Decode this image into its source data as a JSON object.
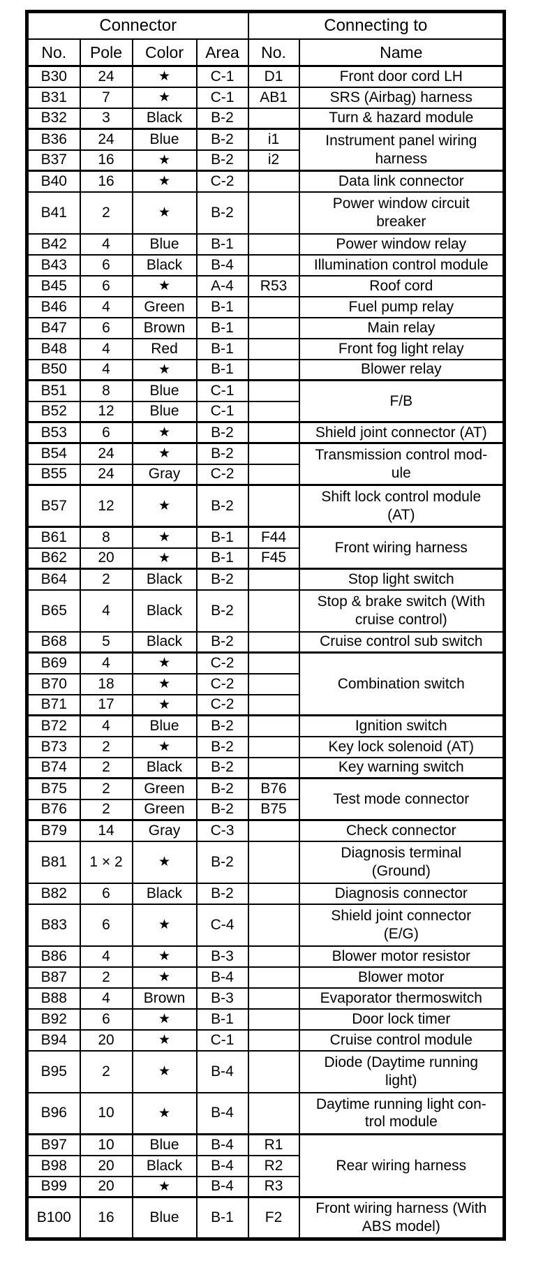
{
  "document": {
    "type": "connector-reference-table",
    "colors": {
      "ink": "#000000",
      "paper": "#ffffff"
    },
    "star_symbol": "★",
    "header_groups": {
      "connector": "Connector",
      "connecting_to": "Connecting to"
    },
    "columns": {
      "no": "No.",
      "pole": "Pole",
      "color": "Color",
      "area": "Area",
      "cno": "No.",
      "name": "Name"
    },
    "rows": [
      {
        "no": "B30",
        "pole": "24",
        "color": "★",
        "area": "C-1",
        "cno": "D1",
        "name": "Front door cord LH"
      },
      {
        "no": "B31",
        "pole": "7",
        "color": "★",
        "area": "C-1",
        "cno": "AB1",
        "name": "SRS (Airbag) harness"
      },
      {
        "no": "B32",
        "pole": "3",
        "color": "Black",
        "area": "B-2",
        "cno": "",
        "name": "Turn & hazard module"
      },
      {
        "no": "B36",
        "pole": "24",
        "color": "Blue",
        "area": "B-2",
        "cno": "i1",
        "name": "Instrument panel wiring\nharness",
        "name_rowspan": 2,
        "thick": true
      },
      {
        "no": "B37",
        "pole": "16",
        "color": "★",
        "area": "B-2",
        "cno": "i2"
      },
      {
        "no": "B40",
        "pole": "16",
        "color": "★",
        "area": "C-2",
        "cno": "",
        "name": "Data link connector",
        "thick": true
      },
      {
        "no": "B41",
        "pole": "2",
        "color": "★",
        "area": "B-2",
        "cno": "",
        "name": "Power window circuit\nbreaker",
        "h": 2
      },
      {
        "no": "B42",
        "pole": "4",
        "color": "Blue",
        "area": "B-1",
        "cno": "",
        "name": "Power window relay"
      },
      {
        "no": "B43",
        "pole": "6",
        "color": "Black",
        "area": "B-4",
        "cno": "",
        "name": "Illumination control module"
      },
      {
        "no": "B45",
        "pole": "6",
        "color": "★",
        "area": "A-4",
        "cno": "R53",
        "name": "Roof cord"
      },
      {
        "no": "B46",
        "pole": "4",
        "color": "Green",
        "area": "B-1",
        "cno": "",
        "name": "Fuel pump relay"
      },
      {
        "no": "B47",
        "pole": "6",
        "color": "Brown",
        "area": "B-1",
        "cno": "",
        "name": "Main relay"
      },
      {
        "no": "B48",
        "pole": "4",
        "color": "Red",
        "area": "B-1",
        "cno": "",
        "name": "Front fog light relay"
      },
      {
        "no": "B50",
        "pole": "4",
        "color": "★",
        "area": "B-1",
        "cno": "",
        "name": "Blower relay"
      },
      {
        "no": "B51",
        "pole": "8",
        "color": "Blue",
        "area": "C-1",
        "cno": "",
        "name": "F/B",
        "name_rowspan": 2,
        "thick": true
      },
      {
        "no": "B52",
        "pole": "12",
        "color": "Blue",
        "area": "C-1",
        "cno": ""
      },
      {
        "no": "B53",
        "pole": "6",
        "color": "★",
        "area": "B-2",
        "cno": "",
        "name": "Shield joint connector (AT)",
        "thick": true
      },
      {
        "no": "B54",
        "pole": "24",
        "color": "★",
        "area": "B-2",
        "cno": "",
        "name": "Transmission control mod-\nule",
        "name_rowspan": 2,
        "thick": true
      },
      {
        "no": "B55",
        "pole": "24",
        "color": "Gray",
        "area": "C-2",
        "cno": ""
      },
      {
        "no": "B57",
        "pole": "12",
        "color": "★",
        "area": "B-2",
        "cno": "",
        "name": "Shift lock control module\n(AT)",
        "h": 2,
        "thick": true
      },
      {
        "no": "B61",
        "pole": "8",
        "color": "★",
        "area": "B-1",
        "cno": "F44",
        "name": "Front wiring harness",
        "name_rowspan": 2,
        "thick": true
      },
      {
        "no": "B62",
        "pole": "20",
        "color": "★",
        "area": "B-1",
        "cno": "F45"
      },
      {
        "no": "B64",
        "pole": "2",
        "color": "Black",
        "area": "B-2",
        "cno": "",
        "name": "Stop light switch",
        "thick": true
      },
      {
        "no": "B65",
        "pole": "4",
        "color": "Black",
        "area": "B-2",
        "cno": "",
        "name": "Stop & brake switch (With\ncruise control)",
        "h": 2
      },
      {
        "no": "B68",
        "pole": "5",
        "color": "Black",
        "area": "B-2",
        "cno": "",
        "name": "Cruise control sub switch"
      },
      {
        "no": "B69",
        "pole": "4",
        "color": "★",
        "area": "C-2",
        "cno": "",
        "name": "Combination switch",
        "name_rowspan": 3,
        "thick": true
      },
      {
        "no": "B70",
        "pole": "18",
        "color": "★",
        "area": "C-2",
        "cno": ""
      },
      {
        "no": "B71",
        "pole": "17",
        "color": "★",
        "area": "C-2",
        "cno": ""
      },
      {
        "no": "B72",
        "pole": "4",
        "color": "Blue",
        "area": "B-2",
        "cno": "",
        "name": "Ignition switch",
        "thick": true
      },
      {
        "no": "B73",
        "pole": "2",
        "color": "★",
        "area": "B-2",
        "cno": "",
        "name": "Key lock solenoid (AT)"
      },
      {
        "no": "B74",
        "pole": "2",
        "color": "Black",
        "area": "B-2",
        "cno": "",
        "name": "Key warning switch"
      },
      {
        "no": "B75",
        "pole": "2",
        "color": "Green",
        "area": "B-2",
        "cno": "B76",
        "name": "Test mode connector",
        "name_rowspan": 2,
        "thick": true
      },
      {
        "no": "B76",
        "pole": "2",
        "color": "Green",
        "area": "B-2",
        "cno": "B75"
      },
      {
        "no": "B79",
        "pole": "14",
        "color": "Gray",
        "area": "C-3",
        "cno": "",
        "name": "Check connector",
        "thick": true
      },
      {
        "no": "B81",
        "pole": "1 × 2",
        "color": "★",
        "area": "B-2",
        "cno": "",
        "name": "Diagnosis terminal\n(Ground)",
        "h": 2
      },
      {
        "no": "B82",
        "pole": "6",
        "color": "Black",
        "area": "B-2",
        "cno": "",
        "name": "Diagnosis connector"
      },
      {
        "no": "B83",
        "pole": "6",
        "color": "★",
        "area": "C-4",
        "cno": "",
        "name": "Shield joint connector\n(E/G)",
        "h": 2
      },
      {
        "no": "B86",
        "pole": "4",
        "color": "★",
        "area": "B-3",
        "cno": "",
        "name": "Blower motor resistor"
      },
      {
        "no": "B87",
        "pole": "2",
        "color": "★",
        "area": "B-4",
        "cno": "",
        "name": "Blower motor"
      },
      {
        "no": "B88",
        "pole": "4",
        "color": "Brown",
        "area": "B-3",
        "cno": "",
        "name": "Evaporator thermoswitch"
      },
      {
        "no": "B92",
        "pole": "6",
        "color": "★",
        "area": "B-1",
        "cno": "",
        "name": "Door lock timer"
      },
      {
        "no": "B94",
        "pole": "20",
        "color": "★",
        "area": "C-1",
        "cno": "",
        "name": "Cruise control module"
      },
      {
        "no": "B95",
        "pole": "2",
        "color": "★",
        "area": "B-4",
        "cno": "",
        "name": "Diode (Daytime running\nlight)",
        "h": 2
      },
      {
        "no": "B96",
        "pole": "10",
        "color": "★",
        "area": "B-4",
        "cno": "",
        "name": "Daytime running light con-\ntrol module",
        "h": 2
      },
      {
        "no": "B97",
        "pole": "10",
        "color": "Blue",
        "area": "B-4",
        "cno": "R1",
        "name": "Rear wiring harness",
        "name_rowspan": 3,
        "thick": true
      },
      {
        "no": "B98",
        "pole": "20",
        "color": "Black",
        "area": "B-4",
        "cno": "R2"
      },
      {
        "no": "B99",
        "pole": "20",
        "color": "★",
        "area": "B-4",
        "cno": "R3"
      },
      {
        "no": "B100",
        "pole": "16",
        "color": "Blue",
        "area": "B-1",
        "cno": "F2",
        "name": "Front wiring harness (With\nABS model)",
        "h": 2,
        "thick": true
      }
    ]
  }
}
